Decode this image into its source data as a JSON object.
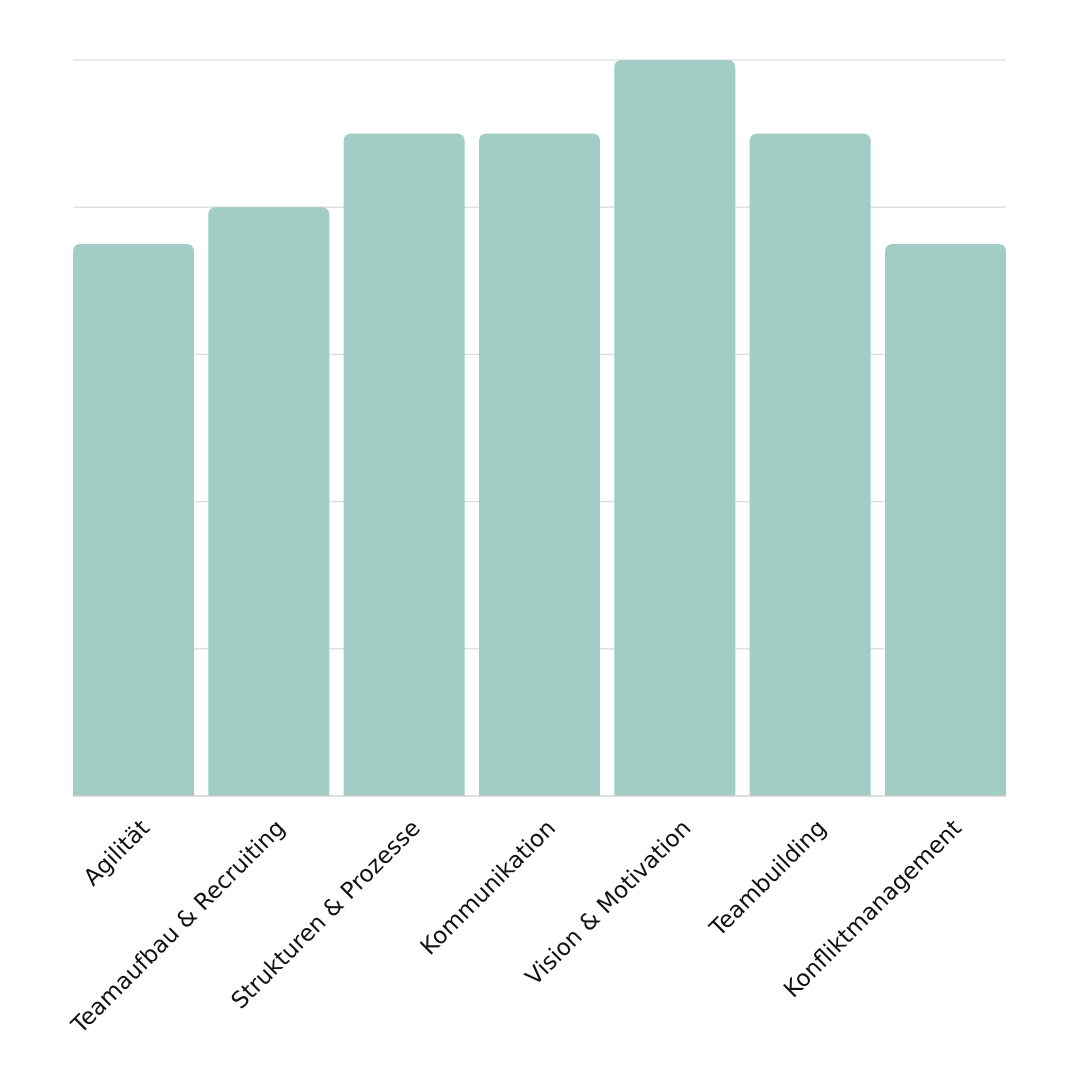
{
  "chart_data": {
    "type": "bar",
    "categories": [
      "Agilität",
      "Teamaufbau & Recruiting",
      "Strukturen & Prozesse",
      "Kommunikation",
      "Vision & Motivation",
      "Teambuilding",
      "Konfliktmanagement"
    ],
    "values": [
      3.75,
      4.0,
      4.5,
      4.5,
      5.0,
      4.5,
      3.75
    ],
    "ylim": [
      0,
      5
    ],
    "y_gridlines": [
      1,
      2,
      3,
      4,
      5
    ],
    "grid": true,
    "legend": "none",
    "title": "",
    "xlabel": "",
    "ylabel": "",
    "colors": {
      "bar": "#a1cdc4",
      "grid": "#dddddd",
      "axis": "#cccccc",
      "label": "#111111"
    }
  }
}
